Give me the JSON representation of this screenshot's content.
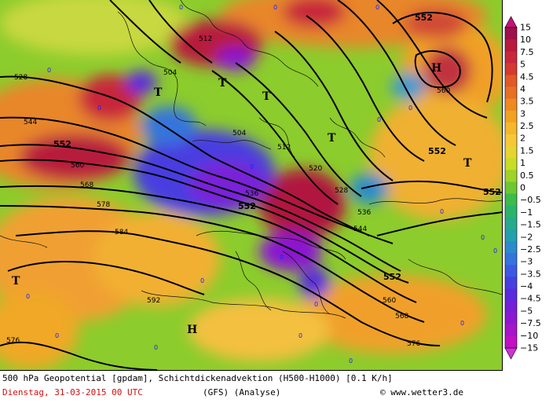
{
  "caption": {
    "line1": "500 hPa Geopotential [gpdam], Schichtdickenadvektion (H500-H1000) [0.1 K/h]",
    "date": "Dienstag, 31-03-2015  00 UTC",
    "model": "(GFS)  (Analyse)",
    "credit": "www.wetter3.de"
  },
  "legend": {
    "labels": [
      "15",
      "10",
      "7.5",
      "5",
      "4.5",
      "4",
      "3.5",
      "3",
      "2.5",
      "2",
      "1.5",
      "1",
      "0.5",
      "0",
      "−0.5",
      "−1",
      "−1.5",
      "−2",
      "−2.5",
      "−3",
      "−3.5",
      "−4",
      "−4.5",
      "−5",
      "−7.5",
      "−10",
      "−15"
    ],
    "colors": [
      "#a0104a",
      "#b81a3c",
      "#c8283a",
      "#d43a30",
      "#e05a26",
      "#e87024",
      "#ee8a22",
      "#f2a222",
      "#f4b82a",
      "#f6c838",
      "#e8d430",
      "#c8dc28",
      "#9ed428",
      "#6cc832",
      "#3cbc4c",
      "#2ab46a",
      "#26aa8c",
      "#24a0ac",
      "#2a8ccc",
      "#3474dc",
      "#3c5ae0",
      "#4640e0",
      "#5a2ae0",
      "#7420d8",
      "#8e18d0",
      "#a814c8",
      "#c010c0"
    ]
  },
  "map": {
    "contour_labels": [
      "528",
      "544",
      "552",
      "560",
      "568",
      "578",
      "584",
      "592",
      "576",
      "512",
      "504",
      "536",
      "552",
      "520",
      "528",
      "536",
      "544",
      "552",
      "560",
      "568",
      "576",
      "560",
      "552",
      "552",
      "512",
      "504"
    ],
    "pressure_marks": [
      "T",
      "T",
      "T",
      "T",
      "T",
      "T",
      "H",
      "H"
    ],
    "zero_label": "0",
    "colors": {
      "warm": "#e88a2a",
      "hot": "#c8283a",
      "cold": "#4a3ce0",
      "neutral": "#8cd02c",
      "mild": "#f2c23a"
    }
  }
}
